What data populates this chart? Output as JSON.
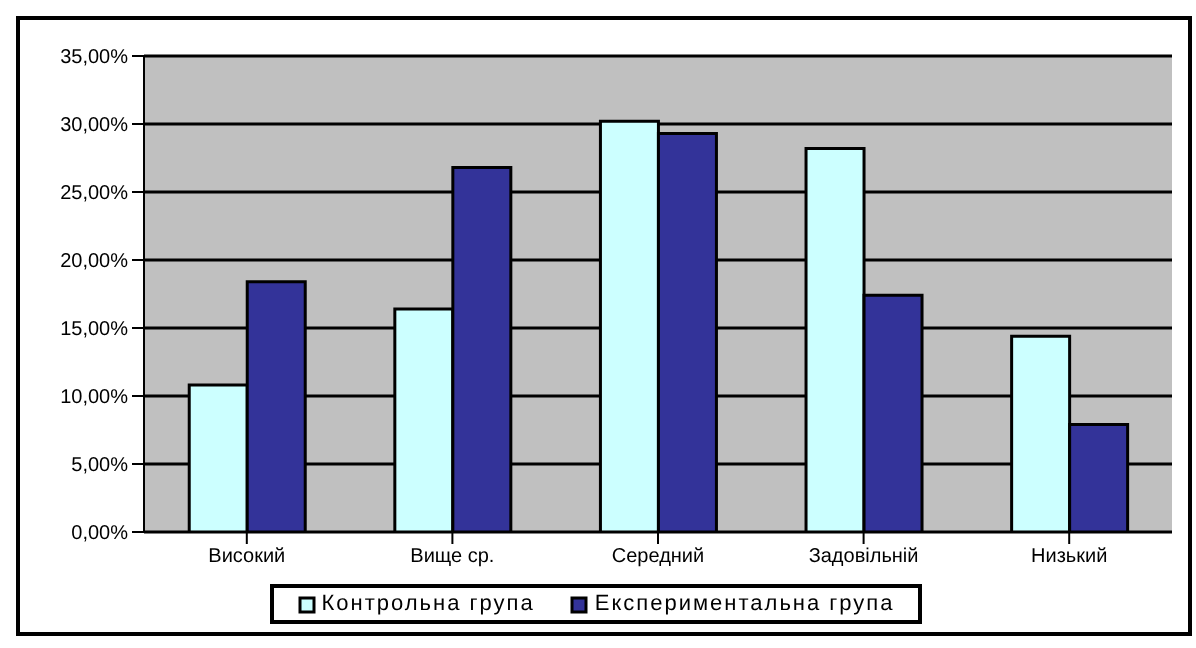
{
  "chart_data": {
    "type": "bar",
    "categories": [
      "Високий",
      "Вище ср.",
      "Середний",
      "Задовільній",
      "Низький"
    ],
    "series": [
      {
        "name": "Контрольна група",
        "color": "#ccffff",
        "values": [
          10.8,
          16.4,
          30.2,
          28.2,
          14.4
        ]
      },
      {
        "name": "Експериментальна група",
        "color": "#333399",
        "values": [
          18.4,
          26.8,
          29.3,
          17.4,
          7.9
        ]
      }
    ],
    "ylim": [
      0,
      35
    ],
    "yticks": [
      {
        "value": 0,
        "label": "0,00%"
      },
      {
        "value": 5,
        "label": "5,00%"
      },
      {
        "value": 10,
        "label": "10,00%"
      },
      {
        "value": 15,
        "label": "15,00%"
      },
      {
        "value": 20,
        "label": "20,00%"
      },
      {
        "value": 25,
        "label": "25,00%"
      },
      {
        "value": 30,
        "label": "30,00%"
      },
      {
        "value": 35,
        "label": "35,00%"
      }
    ],
    "grid": "y",
    "legend": "bottom"
  }
}
